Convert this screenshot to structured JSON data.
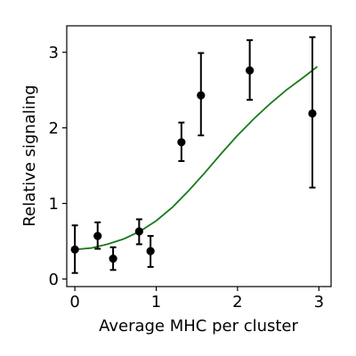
{
  "chart_data": {
    "type": "scatter",
    "xlabel": "Average MHC per cluster",
    "ylabel": "Relative signaling",
    "xlim": [
      -0.1,
      3.15
    ],
    "ylim": [
      -0.1,
      3.35
    ],
    "xticks": [
      0,
      1,
      2,
      3
    ],
    "yticks": [
      0,
      1,
      2,
      3
    ],
    "xtick_labels": [
      "0",
      "1",
      "2",
      "3"
    ],
    "ytick_labels": [
      "0",
      "1",
      "2",
      "3"
    ],
    "grid": false,
    "points": [
      {
        "x": 0.0,
        "y": 0.39,
        "err_low": 0.08,
        "err_high": 0.71
      },
      {
        "x": 0.28,
        "y": 0.57,
        "err_low": 0.4,
        "err_high": 0.75
      },
      {
        "x": 0.47,
        "y": 0.27,
        "err_low": 0.12,
        "err_high": 0.42
      },
      {
        "x": 0.79,
        "y": 0.63,
        "err_low": 0.46,
        "err_high": 0.79
      },
      {
        "x": 0.93,
        "y": 0.37,
        "err_low": 0.16,
        "err_high": 0.57
      },
      {
        "x": 1.31,
        "y": 1.81,
        "err_low": 1.56,
        "err_high": 2.07
      },
      {
        "x": 1.55,
        "y": 2.43,
        "err_low": 1.9,
        "err_high": 2.99
      },
      {
        "x": 2.15,
        "y": 2.76,
        "err_low": 2.37,
        "err_high": 3.16
      },
      {
        "x": 2.92,
        "y": 2.19,
        "err_low": 1.21,
        "err_high": 3.2
      }
    ],
    "fit_curve": {
      "color": "#1a7a1a",
      "points": [
        [
          0.0,
          0.39
        ],
        [
          0.2,
          0.41
        ],
        [
          0.4,
          0.46
        ],
        [
          0.6,
          0.53
        ],
        [
          0.8,
          0.63
        ],
        [
          1.0,
          0.77
        ],
        [
          1.2,
          0.95
        ],
        [
          1.4,
          1.17
        ],
        [
          1.6,
          1.41
        ],
        [
          1.8,
          1.66
        ],
        [
          2.0,
          1.9
        ],
        [
          2.2,
          2.12
        ],
        [
          2.4,
          2.32
        ],
        [
          2.6,
          2.5
        ],
        [
          2.8,
          2.66
        ],
        [
          2.98,
          2.81
        ]
      ]
    },
    "marker_color": "#000000"
  }
}
